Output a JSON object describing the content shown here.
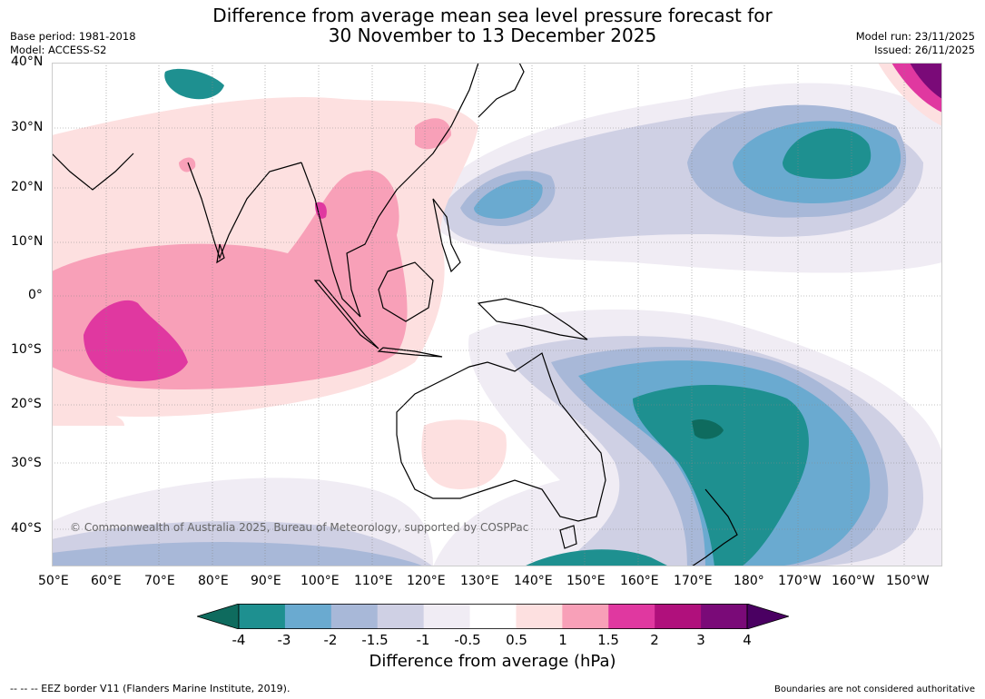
{
  "title": {
    "line1": "Difference from average mean sea level pressure forecast for",
    "line2": "30 November to 13 December 2025"
  },
  "header_left": {
    "base_period": "Base period: 1981-2018",
    "model": "Model: ACCESS-S2"
  },
  "header_right": {
    "model_run": "Model run: 23/11/2025",
    "issued": "Issued: 26/11/2025"
  },
  "axes": {
    "lat_labels": [
      "40°N",
      "30°N",
      "20°N",
      "10°N",
      "0°",
      "10°S",
      "20°S",
      "30°S",
      "40°S"
    ],
    "lon_labels": [
      "50°E",
      "60°E",
      "70°E",
      "80°E",
      "90°E",
      "100°E",
      "110°E",
      "120°E",
      "130°E",
      "140°E",
      "150°E",
      "160°E",
      "170°E",
      "180°",
      "170°W",
      "160°W",
      "150°W"
    ]
  },
  "map": {
    "copyright": "© Commonwealth of Australia 2025, Bureau of Meteorology, supported by COSPPac"
  },
  "colorbar": {
    "label": "Difference from average (hPa)",
    "ticks": [
      "-4",
      "-3",
      "-2",
      "-1.5",
      "-1",
      "-0.5",
      "0.5",
      "1",
      "1.5",
      "2",
      "3",
      "4"
    ],
    "colors": [
      "#0e6b5e",
      "#1e9090",
      "#6aaad0",
      "#a8b8d8",
      "#cfd0e4",
      "#f0ecf4",
      "#ffffff",
      "#fde0e0",
      "#f8a0b8",
      "#e038a0",
      "#b0107c",
      "#7a0a78",
      "#4a0062"
    ]
  },
  "footer": {
    "left": "--  --  -- EEZ border V11 (Flanders Marine Institute, 2019).",
    "right": "Boundaries are not considered authoritative"
  }
}
